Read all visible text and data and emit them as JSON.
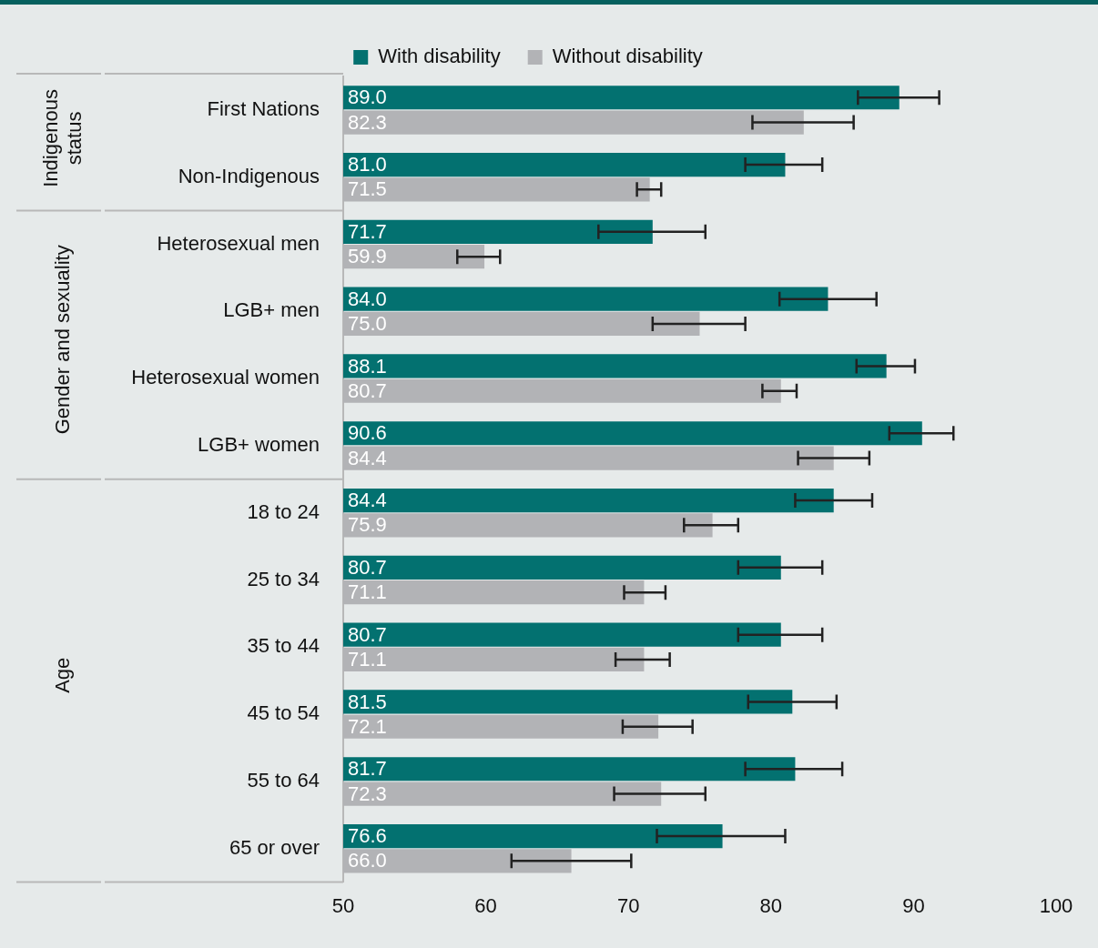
{
  "chart_data": {
    "type": "bar",
    "orientation": "horizontal",
    "categories": [
      "First Nations",
      "Non-Indigenous",
      "Heterosexual men",
      "LGB+ men",
      "Heterosexual women",
      "LGB+ women",
      "18 to 24",
      "25 to 34",
      "35 to 44",
      "45 to 54",
      "55 to 64",
      "65 or over"
    ],
    "series": [
      {
        "name": "With disability",
        "color": "#037170",
        "values": [
          89.0,
          81.0,
          71.7,
          84.0,
          88.1,
          90.6,
          84.4,
          80.7,
          80.7,
          81.5,
          81.7,
          76.6
        ],
        "value_labels": [
          "89.0",
          "81.0",
          "71.7",
          "84.0",
          "88.1",
          "90.6",
          "84.4",
          "80.7",
          "80.7",
          "81.5",
          "81.7",
          "76.6"
        ],
        "errors": [
          [
            86.1,
            91.8
          ],
          [
            78.2,
            83.6
          ],
          [
            67.9,
            75.4
          ],
          [
            80.6,
            87.4
          ],
          [
            86.0,
            90.1
          ],
          [
            88.3,
            92.8
          ],
          [
            81.7,
            87.1
          ],
          [
            77.7,
            83.6
          ],
          [
            77.7,
            83.6
          ],
          [
            78.4,
            84.6
          ],
          [
            78.2,
            85.0
          ],
          [
            72.0,
            81.0
          ]
        ]
      },
      {
        "name": "Without disability",
        "color": "#b2b3b6",
        "values": [
          82.3,
          71.5,
          59.9,
          75.0,
          80.7,
          84.4,
          75.9,
          71.1,
          71.1,
          72.1,
          72.3,
          66.0
        ],
        "value_labels": [
          "82.3",
          "71.5",
          "59.9",
          "75.0",
          "80.7",
          "84.4",
          "75.9",
          "71.1",
          "71.1",
          "72.1",
          "72.3",
          "66.0"
        ],
        "errors": [
          [
            78.7,
            85.8
          ],
          [
            70.6,
            72.3
          ],
          [
            58.0,
            61.0
          ],
          [
            71.7,
            78.2
          ],
          [
            79.4,
            81.8
          ],
          [
            81.9,
            86.9
          ],
          [
            73.9,
            77.7
          ],
          [
            69.7,
            72.6
          ],
          [
            69.1,
            72.9
          ],
          [
            69.6,
            74.5
          ],
          [
            69.0,
            75.4
          ],
          [
            61.8,
            70.2
          ]
        ]
      }
    ],
    "xlim": [
      50,
      100
    ],
    "xticks": [
      50,
      60,
      70,
      80,
      90,
      100
    ],
    "grid": false,
    "legend": "top",
    "annotations": [
      {
        "text": "Indigenous status",
        "y": "First Nations"
      },
      {
        "text": "Gender and sexuality",
        "y": "LGB+ men"
      },
      {
        "text": "Age",
        "y": "35 to 44"
      }
    ]
  }
}
